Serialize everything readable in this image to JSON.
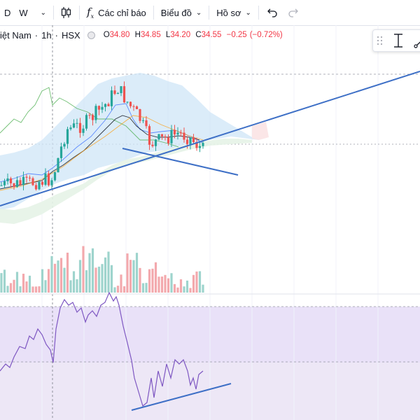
{
  "toolbar": {
    "interval_d": "D",
    "interval_w": "W",
    "indicators_label": "Các chỉ báo",
    "charts_label": "Biểu đồ",
    "profile_label": "Hồ sơ",
    "indicators_icon": "fx-icon",
    "candle_icon": "candlestick-icon",
    "undo_icon": "undo-icon",
    "redo_icon": "redo-icon"
  },
  "legend": {
    "symbol": "iệt Nam",
    "sep1": "·",
    "interval": "1h",
    "sep2": "·",
    "exchange": "HSX",
    "open_label": "O",
    "open": "34.80",
    "high_label": "H",
    "high": "34.85",
    "low_label": "L",
    "low": "34.20",
    "close_label": "C",
    "close": "34.55",
    "change": "−0.25",
    "change_pct": "(−0.72%)"
  },
  "drawing_toolbar": {
    "icons": [
      "drag-handle-icon",
      "vertical-measure-icon",
      "trendline-icon"
    ]
  },
  "colors": {
    "up": "#26a69a",
    "down": "#ef5350",
    "trendline": "#2962ff",
    "rsi_line": "#7e57c2",
    "rsi_band": "#ede7f6",
    "cloud_blue": "#cfe6f7",
    "cloud_green": "#e6f3e7"
  }
}
